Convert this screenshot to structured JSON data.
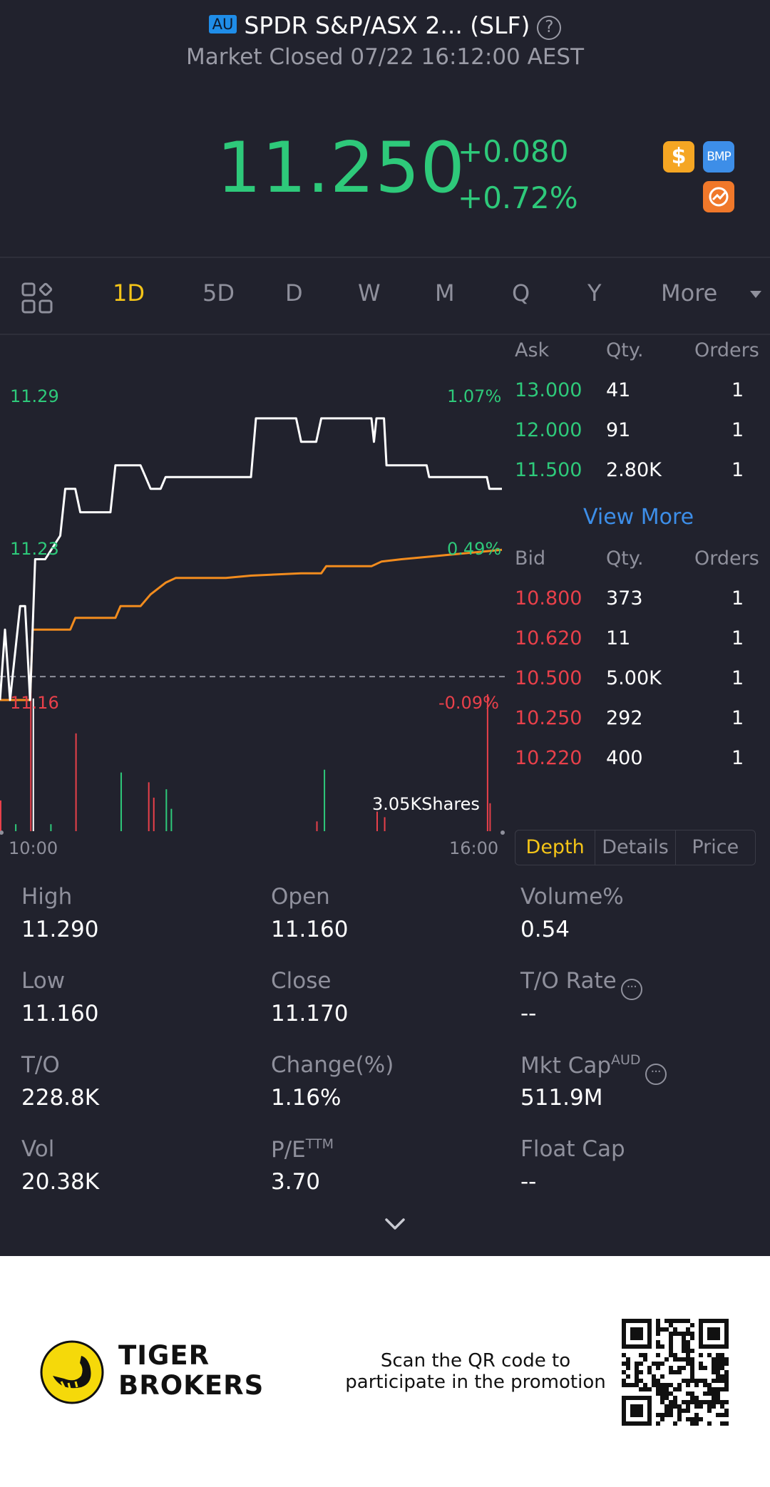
{
  "header": {
    "market_badge": "AU",
    "title": "SPDR S&P/ASX 2... (SLF)",
    "status": "Market Closed 07/22 16:12:00 AEST",
    "price": "11.250",
    "change": "+0.080",
    "change_pct": "+0.72%",
    "badges": [
      "dollar-icon",
      "BMP",
      "trend-icon"
    ],
    "badge_bmp_label": "BMP",
    "badge_dollar_label": "$"
  },
  "tabs": {
    "items": [
      "1D",
      "5D",
      "D",
      "W",
      "M",
      "Q",
      "Y"
    ],
    "active": "1D",
    "more_label": "More"
  },
  "chart_data": {
    "type": "line",
    "title": "",
    "xlabel": "",
    "ylabel": "",
    "x_ticks": [
      "10:00",
      "16:00"
    ],
    "y_ticks_left": [
      "11.29",
      "11.23",
      "11.16"
    ],
    "y_ticks_right": [
      "1.07%",
      "0.49%",
      "-0.09%"
    ],
    "ylim": [
      11.16,
      11.29
    ],
    "reference_line": 11.17,
    "series": [
      {
        "color": "#ffffff",
        "points": [
          [
            0,
            11.16
          ],
          [
            0.01,
            11.19
          ],
          [
            0.02,
            11.16
          ],
          [
            0.04,
            11.2
          ],
          [
            0.05,
            11.2
          ],
          [
            0.06,
            11.16
          ],
          [
            0.07,
            11.22
          ],
          [
            0.09,
            11.22
          ],
          [
            0.12,
            11.23
          ],
          [
            0.13,
            11.25
          ],
          [
            0.15,
            11.25
          ],
          [
            0.16,
            11.24
          ],
          [
            0.22,
            11.24
          ],
          [
            0.23,
            11.26
          ],
          [
            0.28,
            11.26
          ],
          [
            0.29,
            11.255
          ],
          [
            0.3,
            11.25
          ],
          [
            0.32,
            11.25
          ],
          [
            0.33,
            11.255
          ],
          [
            0.5,
            11.255
          ],
          [
            0.51,
            11.28
          ],
          [
            0.59,
            11.28
          ],
          [
            0.6,
            11.27
          ],
          [
            0.63,
            11.27
          ],
          [
            0.64,
            11.28
          ],
          [
            0.74,
            11.28
          ],
          [
            0.745,
            11.27
          ],
          [
            0.75,
            11.28
          ],
          [
            0.765,
            11.28
          ],
          [
            0.77,
            11.26
          ],
          [
            0.85,
            11.26
          ],
          [
            0.855,
            11.255
          ],
          [
            0.97,
            11.255
          ],
          [
            0.975,
            11.25
          ],
          [
            1.0,
            11.25
          ]
        ]
      },
      {
        "color": "#f28c1e",
        "points": [
          [
            0,
            11.16
          ],
          [
            0.06,
            11.16
          ],
          [
            0.065,
            11.19
          ],
          [
            0.14,
            11.19
          ],
          [
            0.15,
            11.195
          ],
          [
            0.23,
            11.195
          ],
          [
            0.24,
            11.2
          ],
          [
            0.28,
            11.2
          ],
          [
            0.3,
            11.205
          ],
          [
            0.33,
            11.21
          ],
          [
            0.35,
            11.212
          ],
          [
            0.45,
            11.212
          ],
          [
            0.5,
            11.213
          ],
          [
            0.6,
            11.214
          ],
          [
            0.64,
            11.214
          ],
          [
            0.65,
            11.217
          ],
          [
            0.74,
            11.217
          ],
          [
            0.76,
            11.219
          ],
          [
            0.8,
            11.22
          ],
          [
            0.85,
            11.221
          ],
          [
            0.9,
            11.222
          ],
          [
            0.95,
            11.223
          ],
          [
            1.0,
            11.224
          ]
        ]
      }
    ],
    "volume_label": "3.05KShares",
    "volume_bars": [
      {
        "x": 0.0,
        "v": 0.22,
        "c": "red"
      },
      {
        "x": 0.03,
        "v": 0.05,
        "c": "green"
      },
      {
        "x": 0.06,
        "v": 1.0,
        "c": "red"
      },
      {
        "x": 0.065,
        "v": 0.95,
        "c": "white"
      },
      {
        "x": 0.1,
        "v": 0.05,
        "c": "green"
      },
      {
        "x": 0.15,
        "v": 0.7,
        "c": "red"
      },
      {
        "x": 0.24,
        "v": 0.42,
        "c": "green"
      },
      {
        "x": 0.295,
        "v": 0.35,
        "c": "red"
      },
      {
        "x": 0.305,
        "v": 0.24,
        "c": "red"
      },
      {
        "x": 0.33,
        "v": 0.3,
        "c": "green"
      },
      {
        "x": 0.34,
        "v": 0.16,
        "c": "green"
      },
      {
        "x": 0.63,
        "v": 0.07,
        "c": "red"
      },
      {
        "x": 0.645,
        "v": 0.44,
        "c": "green"
      },
      {
        "x": 0.75,
        "v": 0.14,
        "c": "red"
      },
      {
        "x": 0.765,
        "v": 0.1,
        "c": "red"
      },
      {
        "x": 0.97,
        "v": 0.98,
        "c": "red"
      },
      {
        "x": 0.975,
        "v": 0.2,
        "c": "red"
      }
    ]
  },
  "order_book": {
    "ask_headers": [
      "Ask",
      "Qty.",
      "Orders"
    ],
    "asks": [
      {
        "price": "13.000",
        "qty": "41",
        "orders": "1"
      },
      {
        "price": "12.000",
        "qty": "91",
        "orders": "1"
      },
      {
        "price": "11.500",
        "qty": "2.80K",
        "orders": "1"
      }
    ],
    "view_more": "View More",
    "bid_headers": [
      "Bid",
      "Qty.",
      "Orders"
    ],
    "bids": [
      {
        "price": "10.800",
        "qty": "373",
        "orders": "1"
      },
      {
        "price": "10.620",
        "qty": "11",
        "orders": "1"
      },
      {
        "price": "10.500",
        "qty": "5.00K",
        "orders": "1"
      },
      {
        "price": "10.250",
        "qty": "292",
        "orders": "1"
      },
      {
        "price": "10.220",
        "qty": "400",
        "orders": "1"
      }
    ],
    "tabs": [
      "Depth",
      "Details",
      "Price"
    ],
    "active_tab": "Depth"
  },
  "stats": {
    "high_label": "High",
    "high": "11.290",
    "open_label": "Open",
    "open": "11.160",
    "volpct_label": "Volume%",
    "volpct": "0.54",
    "low_label": "Low",
    "low": "11.160",
    "close_label": "Close",
    "close": "11.170",
    "to_rate_label": "T/O Rate",
    "to_rate": "--",
    "to_label": "T/O",
    "to": "228.8K",
    "change_label": "Change(%)",
    "change": "1.16%",
    "mktcap_label": "Mkt Cap",
    "mktcap_sup": "AUD",
    "mktcap": "511.9M",
    "vol_label": "Vol",
    "vol": "20.38K",
    "pe_label": "P/E",
    "pe_sup": "TTM",
    "pe": "3.70",
    "floatcap_label": "Float Cap",
    "floatcap": "--"
  },
  "footer": {
    "brand_line1": "TIGER",
    "brand_line2": "BROKERS",
    "promo_line1": "Scan the QR code to",
    "promo_line2": "participate in the promotion"
  }
}
